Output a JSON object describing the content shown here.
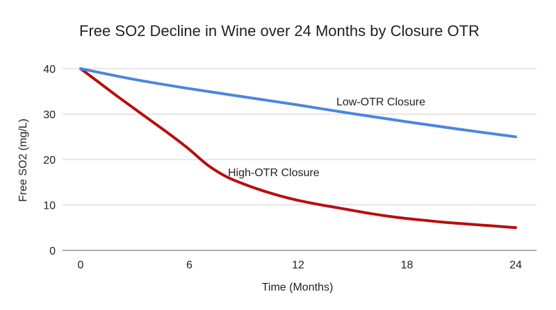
{
  "chart_data": {
    "type": "line",
    "title": "Free SO2 Decline in Wine over 24 Months by Closure OTR",
    "xlabel": "Time (Months)",
    "ylabel": "Free SO2 (mg/L)",
    "xlim": [
      0,
      24
    ],
    "ylim": [
      0,
      40
    ],
    "xticks": [
      0,
      6,
      12,
      18,
      24
    ],
    "yticks": [
      0,
      10,
      20,
      30,
      40
    ],
    "grid": true,
    "legend": "none",
    "series": [
      {
        "name": "Low-OTR Closure",
        "color": "#4a86e0",
        "x": [
          0,
          3,
          6,
          9,
          12,
          15,
          18,
          21,
          24
        ],
        "y": [
          40,
          37.6,
          35.6,
          33.8,
          32,
          30.1,
          28.3,
          26.6,
          25
        ]
      },
      {
        "name": "High-OTR Closure",
        "color": "#b80e0e",
        "x": [
          0,
          1,
          2,
          3,
          4,
          5,
          6,
          7,
          8,
          9,
          10,
          11,
          12,
          13,
          14,
          15,
          16,
          17,
          18,
          19,
          20,
          21,
          22,
          23,
          24
        ],
        "y": [
          40,
          37,
          34,
          31.1,
          28.2,
          25.3,
          22.2,
          18.8,
          16.3,
          14.6,
          13.2,
          12,
          11,
          10.2,
          9.5,
          8.8,
          8.1,
          7.5,
          7,
          6.6,
          6.2,
          5.9,
          5.6,
          5.3,
          5
        ]
      }
    ]
  }
}
